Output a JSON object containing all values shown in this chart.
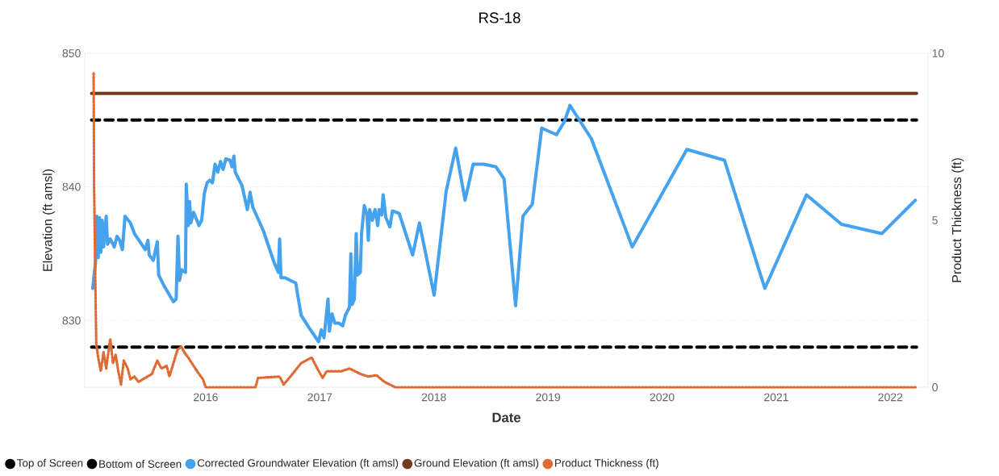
{
  "chart_data": {
    "type": "line",
    "title": "RS-18",
    "xlabel": "Date",
    "ylabel": "Elevation (ft amsl)",
    "y2label": "Product Thickness (ft)",
    "xlim": [
      2014.94,
      2022.33
    ],
    "xticks": [
      2016,
      2017,
      2018,
      2019,
      2020,
      2021,
      2022
    ],
    "ylim": [
      825,
      850
    ],
    "yticks": [
      830,
      840,
      850
    ],
    "y2lim": [
      0,
      10
    ],
    "y2ticks": [
      0,
      5,
      10
    ],
    "grid": "y",
    "legend": "bottom",
    "series": [
      {
        "name": "Top of Screen",
        "color": "#000000",
        "line_style": "dashed",
        "x": [
          2015.0,
          2022.23
        ],
        "values": [
          845,
          845
        ]
      },
      {
        "name": "Bottom of Screen",
        "color": "#000000",
        "line_style": "dashed",
        "x": [
          2015.0,
          2022.23
        ],
        "values": [
          828,
          828
        ]
      },
      {
        "name": "Corrected Groundwater Elevation (ft amsl)",
        "color": "#45a2ef",
        "line_style": "solid",
        "x": [
          2015.01,
          2015.034,
          2015.046,
          2015.058,
          2015.069,
          2015.081,
          2015.093,
          2015.105,
          2015.128,
          2015.14,
          2015.164,
          2015.199,
          2015.223,
          2015.246,
          2015.27,
          2015.293,
          2015.34,
          2015.376,
          2015.47,
          2015.494,
          2015.505,
          2015.541,
          2015.576,
          2015.588,
          2015.635,
          2015.717,
          2015.741,
          2015.757,
          2015.771,
          2015.788,
          2015.823,
          2015.83,
          2015.847,
          2015.859,
          2015.87,
          2015.894,
          2015.941,
          2015.965,
          2015.988,
          2016.012,
          2016.035,
          2016.059,
          2016.082,
          2016.106,
          2016.13,
          2016.153,
          2016.177,
          2016.212,
          2016.231,
          2016.247,
          2016.259,
          2016.318,
          2016.365,
          2016.389,
          2016.412,
          2016.506,
          2016.601,
          2016.636,
          2016.648,
          2016.66,
          2016.695,
          2016.766,
          2016.789,
          2016.836,
          2016.895,
          2016.989,
          2017.013,
          2017.037,
          2017.072,
          2017.084,
          2017.107,
          2017.131,
          2017.166,
          2017.201,
          2017.225,
          2017.26,
          2017.272,
          2017.284,
          2017.303,
          2017.319,
          2017.331,
          2017.355,
          2017.366,
          2017.39,
          2017.414,
          2017.425,
          2017.437,
          2017.461,
          2017.484,
          2017.508,
          2017.52,
          2017.543,
          2017.555,
          2017.579,
          2017.614,
          2017.637,
          2017.696,
          2017.814,
          2017.873,
          2018.002,
          2018.108,
          2018.191,
          2018.273,
          2018.344,
          2018.438,
          2018.544,
          2018.615,
          2018.716,
          2018.78,
          2018.862,
          2018.945,
          2019.074,
          2019.145,
          2019.192,
          2019.38,
          2019.738,
          2020.217,
          2020.546,
          2020.9,
          2021.265,
          2021.572,
          2021.925,
          2022.219
        ],
        "values": [
          832.4,
          834.3,
          837.8,
          834.7,
          837.7,
          835.1,
          837.5,
          835.5,
          837.8,
          835.7,
          836.1,
          835.5,
          836.3,
          836.0,
          835.3,
          837.8,
          837.3,
          836.5,
          835.3,
          836.0,
          834.9,
          834.5,
          835.9,
          833.4,
          832.6,
          831.4,
          831.6,
          836.3,
          833.0,
          833.8,
          833.6,
          840.2,
          837.1,
          838.9,
          837.3,
          838.1,
          837.1,
          837.5,
          839.5,
          840.3,
          840.5,
          840.3,
          841.7,
          841.1,
          841.9,
          841.3,
          842.1,
          842.0,
          841.5,
          842.3,
          841.1,
          840.1,
          838.3,
          839.6,
          838.5,
          836.7,
          834.3,
          833.6,
          836.1,
          833.2,
          833.2,
          832.9,
          832.8,
          830.4,
          829.6,
          828.4,
          829.3,
          828.7,
          831.6,
          829.2,
          830.5,
          829.8,
          829.8,
          829.6,
          830.4,
          831.0,
          835.0,
          831.2,
          831.6,
          836.5,
          833.4,
          833.6,
          836.5,
          838.6,
          837.9,
          836.0,
          838.3,
          837.5,
          838.3,
          837.1,
          838.3,
          837.9,
          839.4,
          837.7,
          837.0,
          838.2,
          838.0,
          834.9,
          837.3,
          831.9,
          839.7,
          842.9,
          839.0,
          841.7,
          841.7,
          841.5,
          840.6,
          831.1,
          837.8,
          838.7,
          844.4,
          843.9,
          844.9,
          846.1,
          843.6,
          835.5,
          842.8,
          842.0,
          832.4,
          839.4,
          837.2,
          836.5,
          839.0
        ]
      },
      {
        "name": "Ground Elevation (ft amsl)",
        "color": "#753a1e",
        "line_style": "solid",
        "x": [
          2015.0,
          2022.23
        ],
        "values": [
          847,
          847
        ]
      },
      {
        "name": "Product Thickness (ft)",
        "color": "#e06a34",
        "line_style": "dotted",
        "axis": "y2",
        "x": [
          2015.018,
          2015.022,
          2015.034,
          2015.041,
          2015.058,
          2015.081,
          2015.105,
          2015.128,
          2015.164,
          2015.187,
          2015.211,
          2015.234,
          2015.258,
          2015.282,
          2015.317,
          2015.34,
          2015.376,
          2015.411,
          2015.47,
          2015.529,
          2015.576,
          2015.611,
          2015.658,
          2015.682,
          2015.717,
          2015.753,
          2015.788,
          2015.812,
          2015.847,
          2015.894,
          2015.941,
          2015.976,
          2016.0,
          2016.436,
          2016.459,
          2016.648,
          2016.683,
          2016.742,
          2016.836,
          2016.93,
          2016.978,
          2017.025,
          2017.06,
          2017.19,
          2017.26,
          2017.355,
          2017.425,
          2017.496,
          2017.567,
          2017.661,
          2017.696,
          2022.23
        ],
        "values": [
          9.4,
          6.1,
          2.9,
          1.29,
          0.89,
          0.48,
          1.05,
          0.56,
          1.45,
          0.72,
          0.97,
          0.48,
          0.08,
          0.8,
          0.56,
          0.24,
          0.32,
          0.16,
          0.28,
          0.4,
          0.8,
          0.56,
          0.64,
          0.32,
          0.72,
          1.13,
          1.21,
          1.05,
          0.89,
          0.64,
          0.4,
          0.24,
          0,
          0,
          0.28,
          0.32,
          0.08,
          0.32,
          0.72,
          0.89,
          0.56,
          0.28,
          0.48,
          0.48,
          0.56,
          0.4,
          0.32,
          0.36,
          0.16,
          0,
          0,
          0
        ]
      }
    ]
  }
}
